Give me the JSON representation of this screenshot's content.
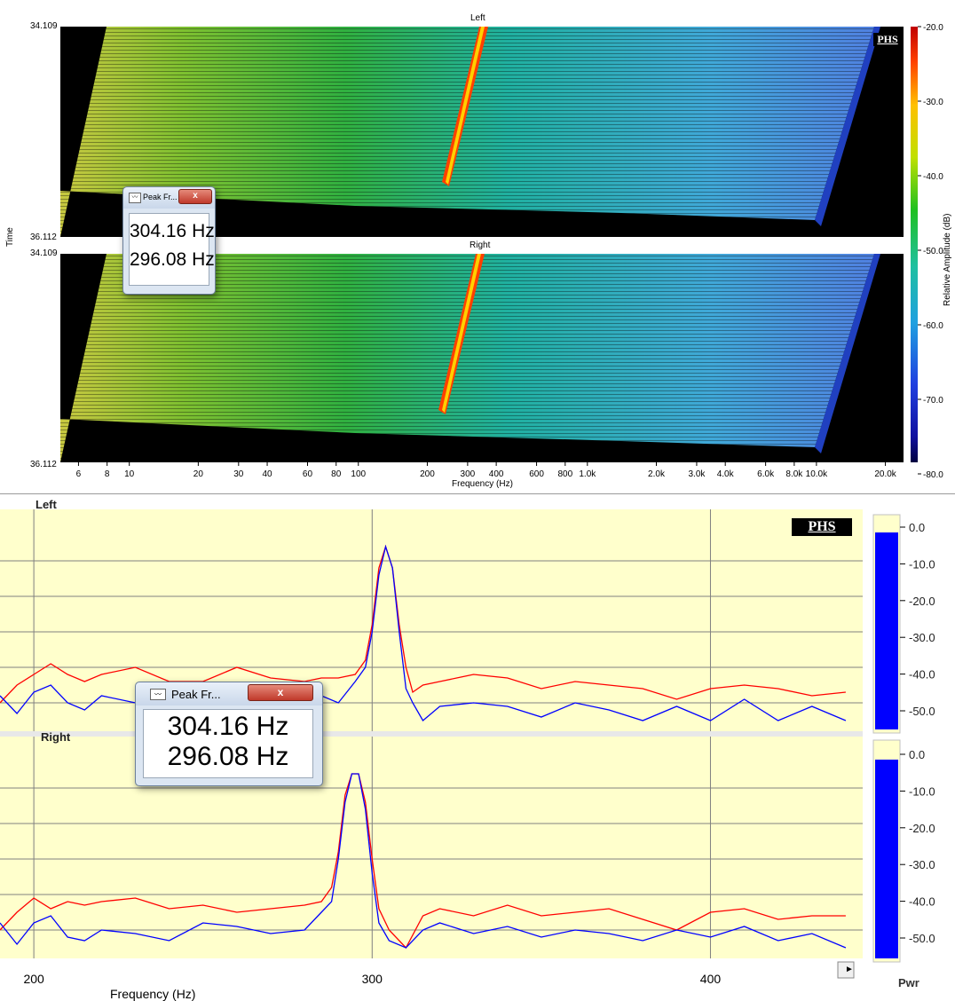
{
  "waterfall": {
    "left_title": "Left",
    "right_title": "Right",
    "time_label": "Time",
    "time_start": "34.109",
    "time_end": "36.112",
    "freq_label": "Frequency (Hz)",
    "freq_ticks": [
      "6",
      "8",
      "10",
      "20",
      "30",
      "40",
      "60",
      "80",
      "100",
      "200",
      "300",
      "400",
      "600",
      "800",
      "1.0k",
      "2.0k",
      "3.0k",
      "4.0k",
      "6.0k",
      "8.0k",
      "10.0k",
      "20.0k"
    ],
    "colorbar_label": "Relative Amplitude (dB)",
    "colorbar_ticks": [
      "-20.0",
      "-30.0",
      "-40.0",
      "-50.0",
      "-60.0",
      "-70.0",
      "-80.0"
    ],
    "logo": "PHS"
  },
  "spectrum": {
    "left_title": "Left",
    "right_title": "Right",
    "freq_label": "Frequency (Hz)",
    "freq_ticks": [
      "200",
      "300",
      "400"
    ],
    "db_ticks": [
      "0.0",
      "-10.0",
      "-20.0",
      "-30.0",
      "-40.0",
      "-50.0"
    ],
    "pwr_label": "Pwr",
    "logo": "PHS",
    "scroll_arrow": "►",
    "colors": {
      "background": "#ffffcc",
      "red": "#ff0000",
      "blue": "#0000ff",
      "bar": "#0000ff"
    }
  },
  "dialog_small": {
    "title": "Peak Fr...",
    "close": "x",
    "values": [
      "304.16 Hz",
      "296.08 Hz"
    ]
  },
  "dialog_large": {
    "title": "Peak Fr...",
    "close": "x",
    "values": [
      "304.16 Hz",
      "296.08 Hz"
    ]
  },
  "chart_data": [
    {
      "type": "line",
      "title": "Left",
      "xlabel": "Frequency (Hz)",
      "ylabel": "",
      "xlim": [
        190,
        445
      ],
      "ylim": [
        -55,
        0
      ],
      "series": [
        {
          "color": "#ff0000",
          "x": [
            190,
            195,
            200,
            205,
            210,
            215,
            220,
            230,
            240,
            250,
            260,
            270,
            280,
            285,
            290,
            295,
            298,
            300,
            302,
            304,
            306,
            308,
            310,
            312,
            315,
            320,
            330,
            340,
            350,
            360,
            370,
            380,
            390,
            400,
            410,
            420,
            430,
            440
          ],
          "y": [
            -50,
            -45,
            -42,
            -39,
            -42,
            -44,
            -42,
            -40,
            -44,
            -44,
            -40,
            -43,
            -44,
            -43,
            -43,
            -42,
            -38,
            -28,
            -12,
            -6,
            -12,
            -28,
            -40,
            -47,
            -45,
            -44,
            -42,
            -43,
            -46,
            -44,
            -45,
            -46,
            -49,
            -46,
            -45,
            -46,
            -48,
            -47
          ]
        },
        {
          "color": "#0000ff",
          "x": [
            190,
            195,
            200,
            205,
            210,
            215,
            220,
            230,
            240,
            250,
            260,
            270,
            280,
            285,
            290,
            295,
            298,
            300,
            302,
            304,
            306,
            308,
            310,
            312,
            315,
            320,
            330,
            340,
            350,
            360,
            370,
            380,
            390,
            400,
            410,
            420,
            430,
            440
          ],
          "y": [
            -48,
            -53,
            -47,
            -45,
            -50,
            -52,
            -48,
            -50,
            -50,
            -52,
            -48,
            -50,
            -53,
            -48,
            -50,
            -44,
            -40,
            -30,
            -14,
            -6,
            -12,
            -30,
            -46,
            -50,
            -55,
            -51,
            -50,
            -51,
            -54,
            -50,
            -52,
            -55,
            -51,
            -55,
            -49,
            -55,
            -51,
            -55
          ]
        }
      ]
    },
    {
      "type": "line",
      "title": "Right",
      "xlabel": "Frequency (Hz)",
      "ylabel": "",
      "xlim": [
        190,
        445
      ],
      "ylim": [
        -55,
        0
      ],
      "series": [
        {
          "color": "#ff0000",
          "x": [
            190,
            195,
            200,
            205,
            210,
            215,
            220,
            230,
            240,
            250,
            260,
            270,
            280,
            285,
            288,
            290,
            292,
            294,
            296,
            298,
            300,
            302,
            305,
            310,
            315,
            320,
            330,
            340,
            350,
            360,
            370,
            380,
            390,
            400,
            410,
            420,
            430,
            440
          ],
          "y": [
            -50,
            -45,
            -41,
            -44,
            -42,
            -43,
            -42,
            -41,
            -44,
            -43,
            -45,
            -44,
            -43,
            -42,
            -38,
            -28,
            -12,
            -6,
            -6,
            -14,
            -30,
            -44,
            -50,
            -55,
            -46,
            -44,
            -46,
            -43,
            -46,
            -45,
            -44,
            -47,
            -50,
            -45,
            -44,
            -47,
            -46,
            -46
          ]
        },
        {
          "color": "#0000ff",
          "x": [
            190,
            195,
            200,
            205,
            210,
            215,
            220,
            230,
            240,
            250,
            260,
            270,
            280,
            285,
            288,
            290,
            292,
            294,
            296,
            298,
            300,
            302,
            305,
            310,
            315,
            320,
            330,
            340,
            350,
            360,
            370,
            380,
            390,
            400,
            410,
            420,
            430,
            440
          ],
          "y": [
            -48,
            -54,
            -48,
            -46,
            -52,
            -53,
            -50,
            -51,
            -53,
            -48,
            -49,
            -51,
            -50,
            -45,
            -42,
            -30,
            -14,
            -6,
            -6,
            -16,
            -34,
            -48,
            -53,
            -55,
            -50,
            -48,
            -51,
            -49,
            -52,
            -50,
            -51,
            -53,
            -50,
            -52,
            -49,
            -53,
            -51,
            -55
          ]
        }
      ]
    }
  ]
}
